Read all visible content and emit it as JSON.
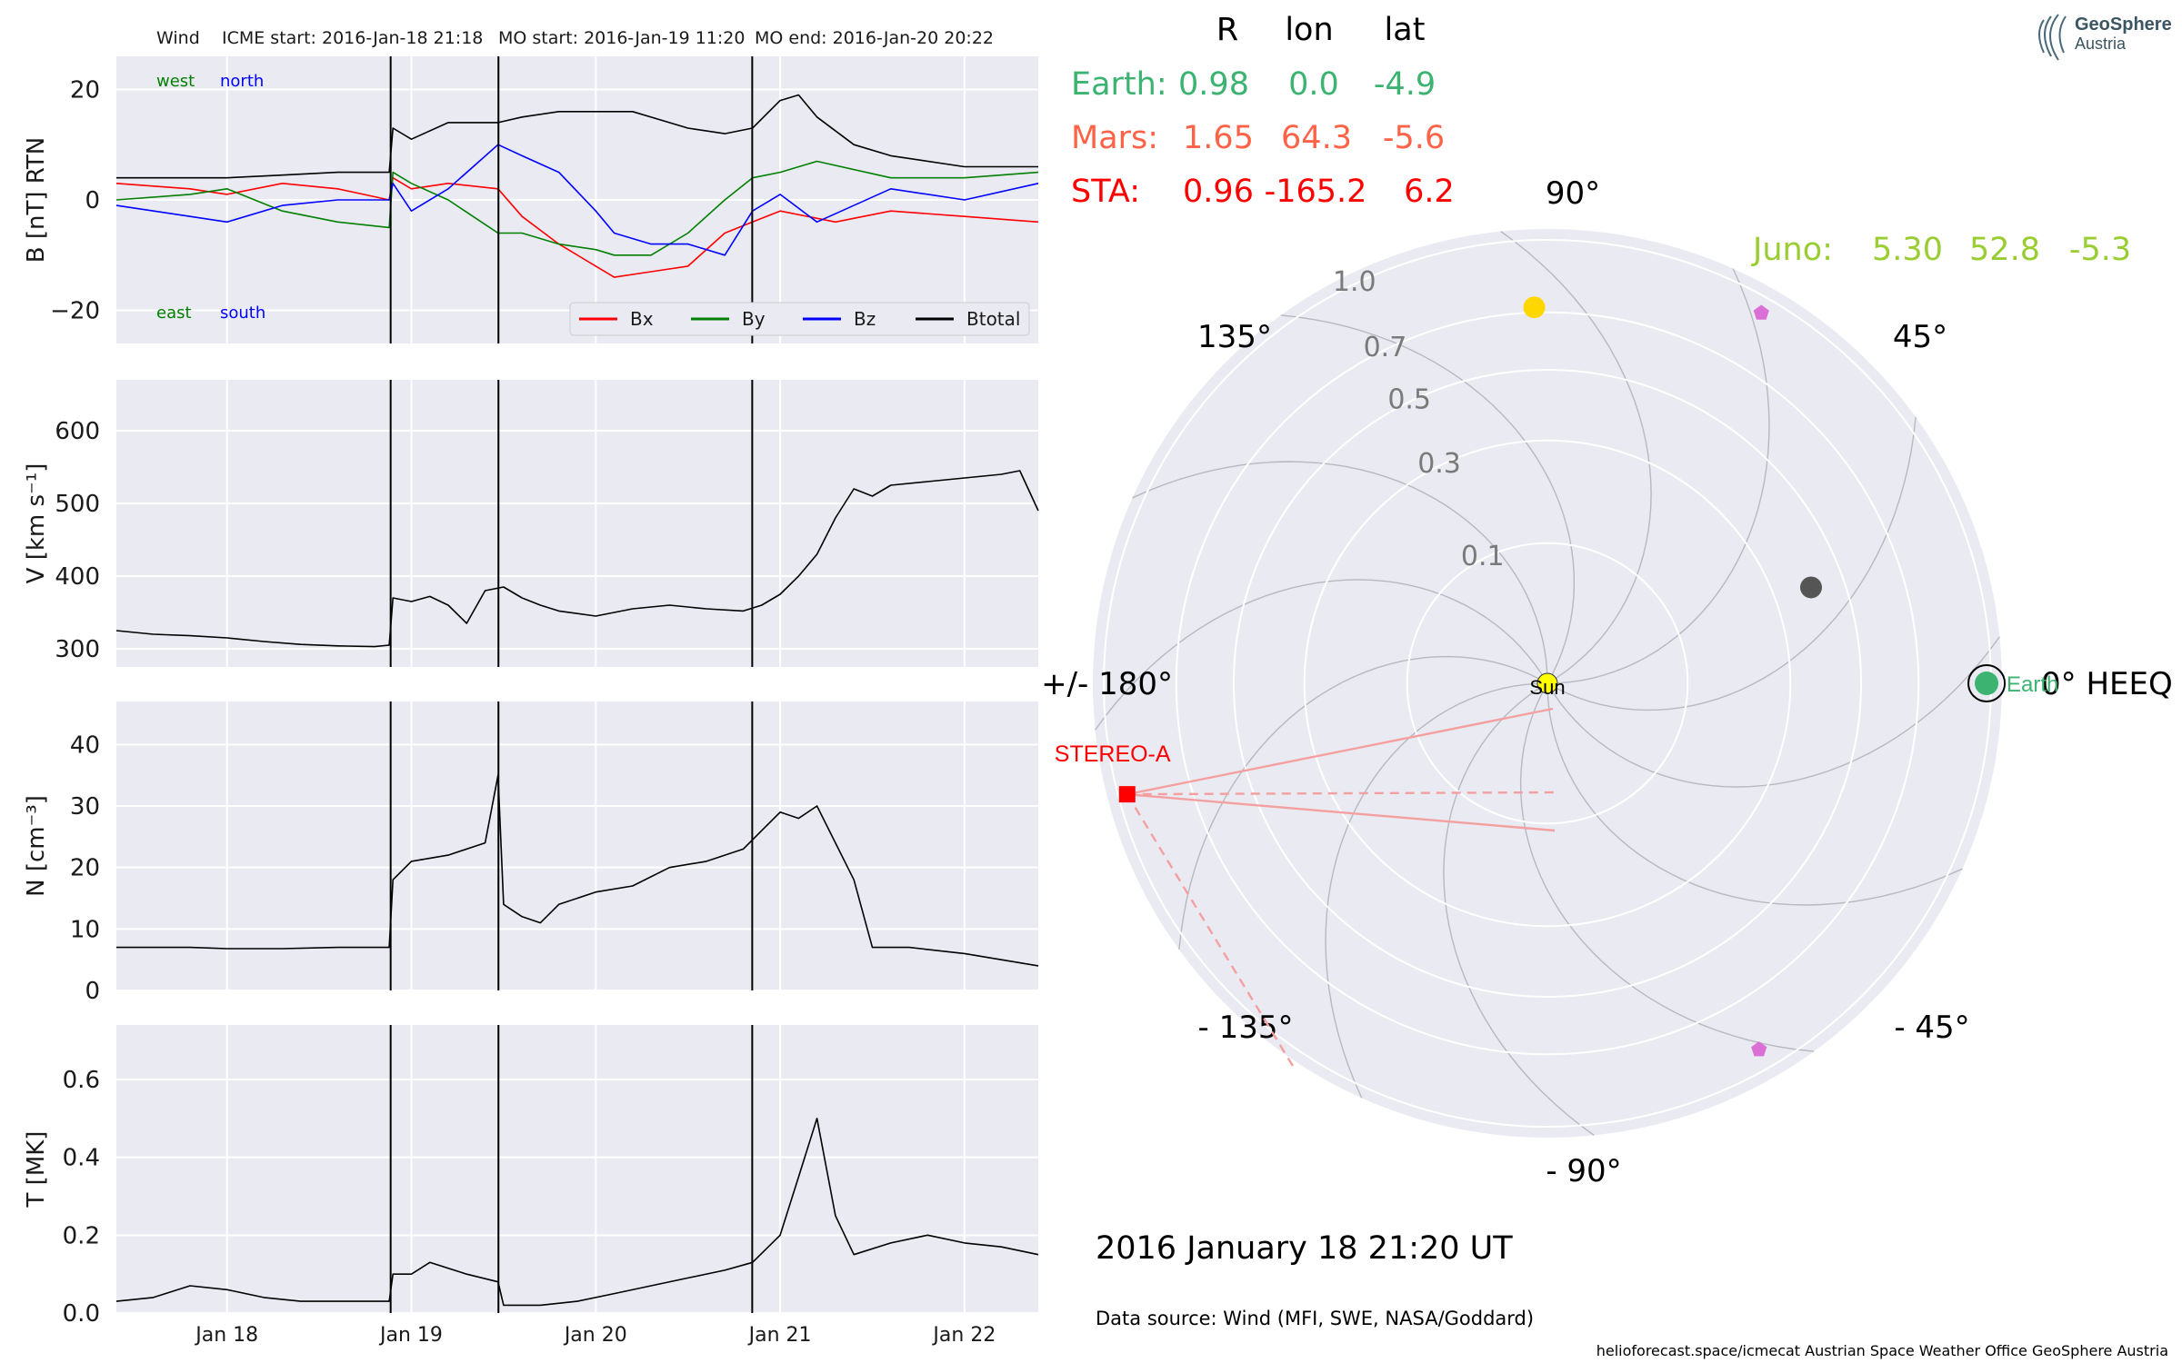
{
  "header": {
    "spacecraft": "Wind",
    "icme_start": "ICME start: 2016-Jan-18 21:18",
    "mo_start": "MO start: 2016-Jan-19 11:20",
    "mo_end": "MO end: 2016-Jan-20 20:22"
  },
  "colors": {
    "bx": "#ff0000",
    "by": "#008000",
    "bz": "#0000ff",
    "btotal": "#000000",
    "panel_bg": "#eaeaf2",
    "earth": "#3cb371",
    "mars": "#ff6347",
    "sta": "#ff0000",
    "juno": "#9acd32",
    "venus": "#ffd700",
    "mercury": "#555555",
    "probe": "#da70d6"
  },
  "chart_data": [
    {
      "type": "line",
      "ylabel": "B [nT] RTN",
      "ylim": [
        -26,
        26
      ],
      "yticks": [
        "20",
        "0",
        "−20"
      ],
      "ytick_values": [
        20,
        0,
        -20
      ],
      "xlim_days": [
        17.4,
        22.4
      ],
      "xtick_labels": [
        "Jan 18",
        "Jan 19",
        "Jan 20",
        "Jan 21",
        "Jan 22"
      ],
      "xtick_days": [
        18,
        19,
        20,
        21,
        22
      ],
      "event_lines_days": [
        18.8875,
        19.4722,
        20.8486
      ],
      "annotations": {
        "west": "west",
        "north": "north",
        "east": "east",
        "south": "south"
      },
      "legend": [
        "Bx",
        "By",
        "Bz",
        "Btotal"
      ],
      "series": [
        {
          "name": "Bx",
          "color_key": "bx",
          "points": [
            [
              17.4,
              3
            ],
            [
              17.8,
              2
            ],
            [
              18.0,
              1
            ],
            [
              18.3,
              3
            ],
            [
              18.6,
              2
            ],
            [
              18.88,
              0
            ],
            [
              18.9,
              4
            ],
            [
              19.0,
              2
            ],
            [
              19.2,
              3
            ],
            [
              19.47,
              2
            ],
            [
              19.6,
              -3
            ],
            [
              19.8,
              -8
            ],
            [
              20.0,
              -12
            ],
            [
              20.1,
              -14
            ],
            [
              20.3,
              -13
            ],
            [
              20.5,
              -12
            ],
            [
              20.7,
              -6
            ],
            [
              20.85,
              -4
            ],
            [
              21.0,
              -2
            ],
            [
              21.3,
              -4
            ],
            [
              21.6,
              -2
            ],
            [
              22.0,
              -3
            ],
            [
              22.4,
              -4
            ]
          ]
        },
        {
          "name": "By",
          "color_key": "by",
          "points": [
            [
              17.4,
              0
            ],
            [
              17.8,
              1
            ],
            [
              18.0,
              2
            ],
            [
              18.3,
              -2
            ],
            [
              18.6,
              -4
            ],
            [
              18.88,
              -5
            ],
            [
              18.9,
              5
            ],
            [
              19.0,
              3
            ],
            [
              19.2,
              0
            ],
            [
              19.47,
              -6
            ],
            [
              19.6,
              -6
            ],
            [
              19.8,
              -8
            ],
            [
              20.0,
              -9
            ],
            [
              20.1,
              -10
            ],
            [
              20.3,
              -10
            ],
            [
              20.5,
              -6
            ],
            [
              20.7,
              0
            ],
            [
              20.85,
              4
            ],
            [
              21.0,
              5
            ],
            [
              21.2,
              7
            ],
            [
              21.6,
              4
            ],
            [
              22.0,
              4
            ],
            [
              22.4,
              5
            ]
          ]
        },
        {
          "name": "Bz",
          "color_key": "bz",
          "points": [
            [
              17.4,
              -1
            ],
            [
              17.8,
              -3
            ],
            [
              18.0,
              -4
            ],
            [
              18.3,
              -1
            ],
            [
              18.6,
              0
            ],
            [
              18.88,
              0
            ],
            [
              18.9,
              3
            ],
            [
              19.0,
              -2
            ],
            [
              19.2,
              2
            ],
            [
              19.47,
              10
            ],
            [
              19.6,
              8
            ],
            [
              19.8,
              5
            ],
            [
              20.0,
              -2
            ],
            [
              20.1,
              -6
            ],
            [
              20.3,
              -8
            ],
            [
              20.5,
              -8
            ],
            [
              20.7,
              -10
            ],
            [
              20.85,
              -2
            ],
            [
              21.0,
              1
            ],
            [
              21.2,
              -4
            ],
            [
              21.6,
              2
            ],
            [
              22.0,
              0
            ],
            [
              22.4,
              3
            ]
          ]
        },
        {
          "name": "Btotal",
          "color_key": "btotal",
          "points": [
            [
              17.4,
              4
            ],
            [
              17.8,
              4
            ],
            [
              18.0,
              4
            ],
            [
              18.3,
              4.5
            ],
            [
              18.6,
              5
            ],
            [
              18.88,
              5
            ],
            [
              18.9,
              13
            ],
            [
              19.0,
              11
            ],
            [
              19.2,
              14
            ],
            [
              19.47,
              14
            ],
            [
              19.6,
              15
            ],
            [
              19.8,
              16
            ],
            [
              20.0,
              16
            ],
            [
              20.2,
              16
            ],
            [
              20.5,
              13
            ],
            [
              20.7,
              12
            ],
            [
              20.85,
              13
            ],
            [
              21.0,
              18
            ],
            [
              21.1,
              19
            ],
            [
              21.2,
              15
            ],
            [
              21.4,
              10
            ],
            [
              21.6,
              8
            ],
            [
              22.0,
              6
            ],
            [
              22.4,
              6
            ]
          ]
        }
      ]
    },
    {
      "type": "line",
      "ylabel": "V [km s⁻¹]",
      "ylim": [
        275,
        670
      ],
      "yticks": [
        "600",
        "500",
        "400",
        "300"
      ],
      "ytick_values": [
        600,
        500,
        400,
        300
      ],
      "xlim_days": [
        17.4,
        22.4
      ],
      "event_lines_days": [
        18.8875,
        19.4722,
        20.8486
      ],
      "series": [
        {
          "name": "V",
          "color_key": "btotal",
          "points": [
            [
              17.4,
              325
            ],
            [
              17.6,
              320
            ],
            [
              17.8,
              318
            ],
            [
              18.0,
              315
            ],
            [
              18.2,
              310
            ],
            [
              18.4,
              306
            ],
            [
              18.6,
              304
            ],
            [
              18.8,
              303
            ],
            [
              18.88,
              305
            ],
            [
              18.9,
              370
            ],
            [
              19.0,
              365
            ],
            [
              19.1,
              372
            ],
            [
              19.2,
              360
            ],
            [
              19.3,
              335
            ],
            [
              19.4,
              380
            ],
            [
              19.5,
              385
            ],
            [
              19.6,
              370
            ],
            [
              19.7,
              360
            ],
            [
              19.8,
              352
            ],
            [
              20.0,
              345
            ],
            [
              20.2,
              355
            ],
            [
              20.4,
              360
            ],
            [
              20.6,
              355
            ],
            [
              20.8,
              352
            ],
            [
              20.9,
              360
            ],
            [
              21.0,
              375
            ],
            [
              21.1,
              400
            ],
            [
              21.2,
              430
            ],
            [
              21.3,
              480
            ],
            [
              21.4,
              520
            ],
            [
              21.5,
              510
            ],
            [
              21.6,
              525
            ],
            [
              21.8,
              530
            ],
            [
              22.0,
              535
            ],
            [
              22.2,
              540
            ],
            [
              22.3,
              545
            ],
            [
              22.4,
              490
            ]
          ]
        }
      ]
    },
    {
      "type": "line",
      "ylabel": "N [cm⁻³]",
      "ylim": [
        0,
        47
      ],
      "yticks": [
        "40",
        "30",
        "20",
        "10",
        "0"
      ],
      "ytick_values": [
        40,
        30,
        20,
        10,
        0
      ],
      "xlim_days": [
        17.4,
        22.4
      ],
      "event_lines_days": [
        18.8875,
        19.4722,
        20.8486
      ],
      "series": [
        {
          "name": "N",
          "color_key": "btotal",
          "points": [
            [
              17.4,
              7
            ],
            [
              17.8,
              7
            ],
            [
              18.0,
              6.8
            ],
            [
              18.3,
              6.8
            ],
            [
              18.6,
              7
            ],
            [
              18.88,
              7
            ],
            [
              18.9,
              18
            ],
            [
              19.0,
              21
            ],
            [
              19.2,
              22
            ],
            [
              19.4,
              24
            ],
            [
              19.47,
              35
            ],
            [
              19.5,
              14
            ],
            [
              19.6,
              12
            ],
            [
              19.7,
              11
            ],
            [
              19.8,
              14
            ],
            [
              20.0,
              16
            ],
            [
              20.2,
              17
            ],
            [
              20.4,
              20
            ],
            [
              20.6,
              21
            ],
            [
              20.8,
              23
            ],
            [
              20.9,
              26
            ],
            [
              21.0,
              29
            ],
            [
              21.1,
              28
            ],
            [
              21.2,
              30
            ],
            [
              21.3,
              24
            ],
            [
              21.4,
              18
            ],
            [
              21.5,
              7
            ],
            [
              21.7,
              7
            ],
            [
              22.0,
              6
            ],
            [
              22.2,
              5
            ],
            [
              22.4,
              4
            ]
          ]
        }
      ]
    },
    {
      "type": "line",
      "ylabel": "T [MK]",
      "ylim": [
        0,
        0.74
      ],
      "yticks": [
        "0.6",
        "0.4",
        "0.2",
        "0.0"
      ],
      "ytick_values": [
        0.6,
        0.4,
        0.2,
        0.0
      ],
      "xlim_days": [
        17.4,
        22.4
      ],
      "event_lines_days": [
        18.8875,
        19.4722,
        20.8486
      ],
      "series": [
        {
          "name": "T",
          "color_key": "btotal",
          "points": [
            [
              17.4,
              0.03
            ],
            [
              17.6,
              0.04
            ],
            [
              17.8,
              0.07
            ],
            [
              18.0,
              0.06
            ],
            [
              18.2,
              0.04
            ],
            [
              18.4,
              0.03
            ],
            [
              18.6,
              0.03
            ],
            [
              18.88,
              0.03
            ],
            [
              18.9,
              0.1
            ],
            [
              19.0,
              0.1
            ],
            [
              19.1,
              0.13
            ],
            [
              19.3,
              0.1
            ],
            [
              19.47,
              0.08
            ],
            [
              19.5,
              0.02
            ],
            [
              19.7,
              0.02
            ],
            [
              19.9,
              0.03
            ],
            [
              20.1,
              0.05
            ],
            [
              20.3,
              0.07
            ],
            [
              20.5,
              0.09
            ],
            [
              20.7,
              0.11
            ],
            [
              20.85,
              0.13
            ],
            [
              21.0,
              0.2
            ],
            [
              21.1,
              0.35
            ],
            [
              21.2,
              0.5
            ],
            [
              21.3,
              0.25
            ],
            [
              21.4,
              0.15
            ],
            [
              21.6,
              0.18
            ],
            [
              21.8,
              0.2
            ],
            [
              22.0,
              0.18
            ],
            [
              22.2,
              0.17
            ],
            [
              22.4,
              0.15
            ]
          ]
        }
      ]
    },
    {
      "type": "scatter",
      "subtype": "polar",
      "r_ticks": [
        "0.1",
        "0.3",
        "0.5",
        "0.7",
        "1.0"
      ],
      "r_tick_values": [
        0.1,
        0.3,
        0.5,
        0.7,
        1.0
      ],
      "angle_labels": {
        "a90": "90°",
        "a45": "45°",
        "a0": "0° HEEQ",
        "a135": "135°",
        "a180": "+/- 180°",
        "am135": "- 135°",
        "am90": "- 90°",
        "am45": "- 45°"
      },
      "bodies": [
        {
          "name": "Sun",
          "r": 0.0,
          "lon": 0,
          "color_key": "venus"
        },
        {
          "name": "Earth",
          "r": 0.98,
          "lon": 0.0,
          "color_key": "earth"
        },
        {
          "name": "Venus",
          "r": 0.72,
          "lon": 92,
          "color_key": "venus"
        },
        {
          "name": "Mercury",
          "r": 0.4,
          "lon": 20,
          "color_key": "mercury"
        },
        {
          "name": "STEREO-A",
          "r": 0.96,
          "lon": -165.2,
          "color_key": "sta"
        },
        {
          "name": "Probe1",
          "r": 0.93,
          "lon": 60,
          "color_key": "probe"
        },
        {
          "name": "Probe2",
          "r": 0.91,
          "lon": -60,
          "color_key": "probe"
        }
      ],
      "labels": {
        "sun": "Sun",
        "earth": "Earth",
        "sta": "STEREO-A"
      }
    }
  ],
  "positions": {
    "headers": [
      "R",
      "lon",
      "lat"
    ],
    "rows": [
      {
        "name": "Earth:",
        "r": "0.98",
        "lon": "0.0",
        "lat": "-4.9",
        "color_key": "earth"
      },
      {
        "name": "Mars:",
        "r": "1.65",
        "lon": "64.3",
        "lat": "-5.6",
        "color_key": "mars"
      },
      {
        "name": "STA:",
        "r": "0.96",
        "lon": "-165.2",
        "lat": "6.2",
        "color_key": "sta"
      }
    ],
    "juno": {
      "name": "Juno:",
      "r": "5.30",
      "lon": "52.8",
      "lat": "-5.3",
      "color_key": "juno"
    }
  },
  "date_text": "2016 January 18  21:20 UT",
  "data_source": "Data source: Wind (MFI, SWE, NASA/Goddard)",
  "footer": "helioforecast.space/icmecat   Austrian Space Weather Office   GeoSphere Austria",
  "logo": {
    "line1": "GeoSphere",
    "line2": "Austria"
  }
}
